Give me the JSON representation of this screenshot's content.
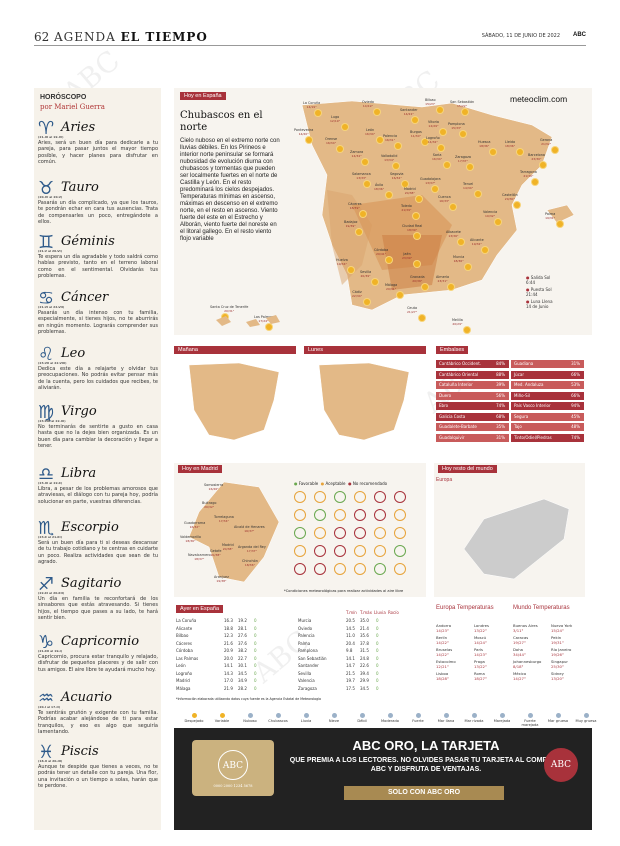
{
  "header": {
    "page": "62",
    "section_a": "AGENDA",
    "section_b": "EL TIEMPO",
    "date": "SÁBADO, 11 DE JUNIO DE 2022",
    "logo": "ABC"
  },
  "horoscope": {
    "title": "HORÓSCOPO",
    "byline": "por Mariel Guerra",
    "signs": [
      {
        "name": "Aries",
        "symbol": "♈",
        "dates": "(21-III al 19-IV)",
        "text": "Aries, será un buen día para dedicarle a tu pareja, para pasar juntos el mayor tiempo posible, y hacer planes para disfrutar en común."
      },
      {
        "name": "Tauro",
        "symbol": "♉",
        "dates": "(20-IV al 20-V)",
        "text": "Pasarás un día complicado, ya que los tauros, te pondrán echar en cara tus ausencias. Trata de compensarles un poco, entregándote a ellos."
      },
      {
        "name": "Géminis",
        "symbol": "♊",
        "dates": "(21-V al 20-VI)",
        "text": "Te espera un día agradable y todo saldrá como habías previsto, tanto en el terreno laboral como en el sentimental. Olvidarás tus problemas."
      },
      {
        "name": "Cáncer",
        "symbol": "♋",
        "dates": "(21-VI al 22-VII)",
        "text": "Pasarás un día intenso con tu familia, especialmente, si tienes hijos, no te aburrirás en ningún momento. Lograrás comprender sus problemas."
      },
      {
        "name": "Leo",
        "symbol": "♌",
        "dates": "(23-VII al 22-VIII)",
        "text": "Dedica este día a relajarte y olvidar tus preocupaciones. No podrás evitar pensar más de la cuenta, pero los cuidados que recibes, te aliviarán."
      },
      {
        "name": "Virgo",
        "symbol": "♍",
        "dates": "(23-VIII al 22-IX)",
        "text": "No terminarás de sentirte a gusto en casa hasta que no la dejes bien organizada. Es un buen día para cambiar la decoración y llegar a tener."
      },
      {
        "name": "Libra",
        "symbol": "♎",
        "dates": "(23-IX al 22-X)",
        "text": "Libra, a pesar de los problemas amorosos que atraviesas, el diálogo con tu pareja hoy, podría solucionar en parte, vuestras diferencias."
      },
      {
        "name": "Escorpio",
        "symbol": "♏",
        "dates": "(23-X al 21-XI)",
        "text": "Será un buen día para ti si deseas descansar de tu trabajo cotidiano y te centras en cuidarte un poco. Realiza actividades que sean de tu agrado."
      },
      {
        "name": "Sagitario",
        "symbol": "♐",
        "dates": "(22-XI al 20-XII)",
        "text": "Un día en familia te reconfortará de los sinsabores que estás atravesando. Si tienes hijos, el tiempo que pases a su lado, te hará sentir bien."
      },
      {
        "name": "Capricornio",
        "symbol": "♑",
        "dates": "(21-XII al 19-I)",
        "text": "Capricornio, procura estar tranquilo y relajado, disfrutar de pequeños placeres y de salir con tus amigos. El aire libre te ayudará mucho hoy."
      },
      {
        "name": "Acuario",
        "symbol": "♒",
        "dates": "(20-I al 17-II)",
        "text": "Te sentirás gruñón y exigente con tu familia. Podrías acabar alejándose de ti para estar tranquilos, y eso es algo que seguiría lamentando."
      },
      {
        "name": "Piscis",
        "symbol": "♓",
        "dates": "(18-II al 20-III)",
        "text": "Aunque te despide que tienes a veces, no te podrás tener un detalle con tu pareja. Una flor, una invitación o un tiempo a solas, harán que te perdone."
      }
    ]
  },
  "spain": {
    "tag": "Hoy en España",
    "title": "Chubascos en el norte",
    "text": "Cielo nuboso en el extremo norte con lluvias débiles. En los Pirineos e interior norte peninsular se formará nubosidad de evolución diurna con chubascos y tormentas que pueden ser localmente fuertes en el norte de Castilla y León. En el resto predominará los cielos despejados. Temperaturas mínimas en ascenso, máximas en descenso en el extremo norte, en el resto en ascenso. Viento fuerte del este en el Estrecho y Alborán, viento fuerte del noreste en el litoral gallego. En el resto viento flojo variable",
    "brand": "meteoclim.com",
    "cities": [
      {
        "n": "La Coruña",
        "t": "14/19°"
      },
      {
        "n": "Lugo",
        "t": "12/19°"
      },
      {
        "n": "Oviedo",
        "t": "14/19°"
      },
      {
        "n": "Santander",
        "t": "14/22°"
      },
      {
        "n": "Bilbao",
        "t": "15/23°"
      },
      {
        "n": "San Sebastián",
        "t": "15/22°"
      },
      {
        "n": "Pontevedra",
        "t": "14/20°"
      },
      {
        "n": "Orense",
        "t": "16/34°"
      },
      {
        "n": "León",
        "t": "16/34°"
      },
      {
        "n": "Palencia",
        "t": "16/31°"
      },
      {
        "n": "Burgos",
        "t": "11/30°"
      },
      {
        "n": "Vitoria",
        "t": "12/29°"
      },
      {
        "n": "Pamplona",
        "t": "15/33°"
      },
      {
        "n": "Logroño",
        "t": "14/32°"
      },
      {
        "n": "Huesca",
        "t": "18/36°"
      },
      {
        "n": "Lleida",
        "t": "18/36°"
      },
      {
        "n": "Gerona",
        "t": "21/32°"
      },
      {
        "n": "Barcelona",
        "t": "23/30°"
      },
      {
        "n": "Zamora",
        "t": "14/34°"
      },
      {
        "n": "Valladolid",
        "t": "13/34°"
      },
      {
        "n": "Soria",
        "t": "16/34°"
      },
      {
        "n": "Zaragoza",
        "t": "17/37°"
      },
      {
        "n": "Tarragona",
        "t": "21/30°"
      },
      {
        "n": "Salamanca",
        "t": "13/33°"
      },
      {
        "n": "Segovia",
        "t": "16/34°"
      },
      {
        "n": "Guadalajara",
        "t": "13/37°"
      },
      {
        "n": "Teruel",
        "t": "14/34°"
      },
      {
        "n": "Ávila",
        "t": "18/36°"
      },
      {
        "n": "Madrid",
        "t": "20/38°"
      },
      {
        "n": "Cuenca",
        "t": "16/33°"
      },
      {
        "n": "Castellón",
        "t": "20/30°"
      },
      {
        "n": "Cáceres",
        "t": "18/39°"
      },
      {
        "n": "Toledo",
        "t": "21/39°"
      },
      {
        "n": "Valencia",
        "t": "19/32°"
      },
      {
        "n": "Palma",
        "t": "19/31°"
      },
      {
        "n": "Badajoz",
        "t": "19/39°"
      },
      {
        "n": "Ciudad Real",
        "t": "18/39°"
      },
      {
        "n": "Albacete",
        "t": "13/36°"
      },
      {
        "n": "Alicante",
        "t": "19/32°"
      },
      {
        "n": "Jaén",
        "t": "23/39°"
      },
      {
        "n": "Murcia",
        "t": "18/36°"
      },
      {
        "n": "Huelva",
        "t": "19/34°"
      },
      {
        "n": "Córdoba",
        "t": "20/41°"
      },
      {
        "n": "Sevilla",
        "t": "20/39°"
      },
      {
        "n": "Granada",
        "t": "20/36°"
      },
      {
        "n": "Almería",
        "t": "23/31°"
      },
      {
        "n": "Cádiz",
        "t": "22/34°"
      },
      {
        "n": "Málaga",
        "t": "20/31°"
      },
      {
        "n": "Ceuta",
        "t": "21/27°"
      },
      {
        "n": "Melilla",
        "t": "20/29°"
      },
      {
        "n": "Santa Cruz de Tenerife",
        "t": "20/31°"
      },
      {
        "n": "Las Palmas",
        "t": "17/24°"
      }
    ],
    "legend": [
      {
        "label": "Salida Sol",
        "value": "6:44"
      },
      {
        "label": "Puesta Sol",
        "value": "21:44"
      },
      {
        "label": "Luna Llena",
        "value": "14 de Junio"
      }
    ]
  },
  "small_maps": [
    {
      "tag": "Mañana"
    },
    {
      "tag": "Lunes"
    }
  ],
  "reservoirs": {
    "tag": "Embalses",
    "rows": [
      [
        "Cantábrico Occident.",
        "84%"
      ],
      [
        "Cantábrico Oriental",
        "88%"
      ],
      [
        "Cataluña Interior",
        "39%"
      ],
      [
        "Duero",
        "56%"
      ],
      [
        "Ebro",
        "74%"
      ],
      [
        "Galicia Costa",
        "68%"
      ],
      [
        "Guadalete-Barbate",
        "35%"
      ],
      [
        "Guadalquivir",
        "31%"
      ],
      [
        "Guadiana",
        "31%"
      ],
      [
        "Júcar",
        "66%"
      ],
      [
        "Med. Andaluza",
        "53%"
      ],
      [
        "Miño-Sil",
        "66%"
      ],
      [
        "País Vasco Interior",
        "94%"
      ],
      [
        "Segura",
        "45%"
      ],
      [
        "Tajo",
        "48%"
      ],
      [
        "Tinto/Odiel/Piedras",
        "74%"
      ]
    ]
  },
  "madrid": {
    "tag": "Hoy en Madrid",
    "legend": [
      "Favorable",
      "Aceptable",
      "No recomendado"
    ],
    "note": "*Condiciones meteorológicas para realizar actividades al aire libre",
    "places": [
      {
        "n": "Somosierra",
        "t": "16/26°"
      },
      {
        "n": "Buitrago",
        "t": "20/32°"
      },
      {
        "n": "Torrelaguna",
        "t": "17/34°"
      },
      {
        "n": "Guadarrama",
        "t": "16/32°"
      },
      {
        "n": "Valdemorillo",
        "t": "18/36°"
      },
      {
        "n": "Alcalá de Henares",
        "t": "16/37°"
      },
      {
        "n": "Madrid",
        "t": "20/38°"
      },
      {
        "n": "Getafe",
        "t": "20/38°"
      },
      {
        "n": "Navalcarnero",
        "t": "18/37°"
      },
      {
        "n": "Arganda del Rey",
        "t": "17/37°"
      },
      {
        "n": "Chinchón",
        "t": "18/36°"
      },
      {
        "n": "Aranjuez",
        "t": "19/38°"
      }
    ]
  },
  "resto": {
    "tag": "Hoy resto del mundo",
    "europa": "Europa"
  },
  "ayer": {
    "tag": "Ayer en España",
    "head": [
      "T.mín",
      "T.máx",
      "Lluvia",
      "Rocío"
    ],
    "left": [
      [
        "La Coruña",
        "16.3",
        "19.2",
        "0"
      ],
      [
        "Alicante",
        "18.8",
        "28.1",
        "0"
      ],
      [
        "Bilbao",
        "12.3",
        "27.6",
        "0"
      ],
      [
        "Cáceres",
        "21.6",
        "37.6",
        "0"
      ],
      [
        "Córdoba",
        "20.9",
        "38.2",
        "0"
      ],
      [
        "Las Palmas",
        "20.0",
        "22.7",
        "0"
      ],
      [
        "León",
        "14.1",
        "30.1",
        "0"
      ],
      [
        "Logroño",
        "14.3",
        "34.5",
        "0"
      ],
      [
        "Madrid",
        "17.0",
        "34.9",
        "0"
      ],
      [
        "Málaga",
        "21.9",
        "28.2",
        "0"
      ]
    ],
    "right": [
      [
        "Murcia",
        "20.5",
        "35.0",
        "0"
      ],
      [
        "Oviedo",
        "14.5",
        "21.4",
        "0"
      ],
      [
        "Palencia",
        "11.0",
        "35.6",
        "0"
      ],
      [
        "Palma",
        "20.4",
        "37.8",
        "0"
      ],
      [
        "Pamplona",
        "9.8",
        "31.5",
        "0"
      ],
      [
        "San Sebastián",
        "14.1",
        "24.8",
        "0"
      ],
      [
        "Santander",
        "14.7",
        "22.6",
        "0"
      ],
      [
        "Sevilla",
        "21.5",
        "39.4",
        "0"
      ],
      [
        "Valencia",
        "19.7",
        "29.9",
        "0"
      ],
      [
        "Zaragoza",
        "17.5",
        "34.5",
        "0"
      ]
    ],
    "note": "*Información elaborada utilizando datos cuya fuente es la Agencia Estatal de Meteorología"
  },
  "europa_temps": {
    "title": "Europa Temperaturas",
    "rows": [
      [
        "Andorra",
        "14/23°",
        "Londres",
        "13/22°"
      ],
      [
        "Berlín",
        "14/22°",
        "Moscú",
        "14/24°"
      ],
      [
        "Bruselas",
        "14/22°",
        "París",
        "14/23°"
      ],
      [
        "Estocolmo",
        "12/21°",
        "Praga",
        "13/22°"
      ],
      [
        "Lisboa",
        "18/28°",
        "Roma",
        "18/27°"
      ]
    ]
  },
  "mundo_temps": {
    "title": "Mundo Temperaturas",
    "rows": [
      [
        "Buenos Aires",
        "3/11°",
        "Nueva York",
        "15/24°"
      ],
      [
        "Caracas",
        "19/27°",
        "Pekín",
        "19/31°"
      ],
      [
        "Doha",
        "34/44°",
        "Río Janeiro",
        "19/26°"
      ],
      [
        "Johannesburgo",
        "8/18°",
        "Singapur",
        "25/30°"
      ],
      [
        "México",
        "14/27°",
        "Sidney",
        "13/20°"
      ]
    ]
  },
  "icons": [
    "Despejado",
    "Variable",
    "Nuboso",
    "Chubascos",
    "Lluvia",
    "Nieve",
    "Débil",
    "Moderado",
    "Fuerte",
    "Mar llana",
    "Mar rizada",
    "Marejada",
    "Fuerte marejada",
    "Mar gruesa",
    "Muy gruesa"
  ],
  "ad": {
    "headline": "ABC ORO, LA TARJETA",
    "body": "QUE PREMIA A LOS LECTORES. NO OLVIDES PASAR TU TARJETA AL COMPRAR ABC Y DISFRUTA DE VENTAJAS.",
    "cta": "SOLO CON ABC ORO",
    "card": "ABC",
    "card_sub": "ORO",
    "card_num": "0000 2000 1234 5678"
  }
}
